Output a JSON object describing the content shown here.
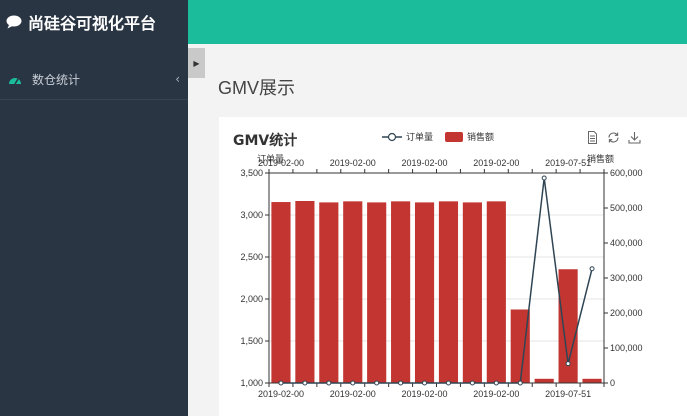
{
  "app": {
    "title": "尚硅谷可视化平台"
  },
  "sidebar": {
    "items": [
      {
        "label": "数仓统计",
        "chevron": "‹",
        "icon": "dashboard-icon"
      }
    ]
  },
  "main": {
    "collapse_glyph": "▶",
    "page_title": "GMV展示"
  },
  "colors": {
    "topbar": "#1abc9c",
    "sidebar": "#2a3543",
    "bar": "#c23531",
    "line": "#2f4554"
  },
  "chart_data": {
    "type": "bar",
    "title": "GMV统计",
    "legend": [
      "订单量",
      "销售额"
    ],
    "x": [
      "2019-02-00",
      "2019-02-00",
      "2019-02-00",
      "2019-02-00",
      "2019-02-00",
      "2019-02-00",
      "2019-02-00",
      "2019-02-00",
      "2019-02-00",
      "2019-02-00",
      "2019-02-00",
      "2019-07-51",
      "2019-07-51",
      "2019-07-51"
    ],
    "top_tick_labels": [
      "2019-02-00",
      "2019-02-00",
      "2019-02-00",
      "2019-02-00",
      "2019-07-51"
    ],
    "bottom_tick_labels": [
      "2019-02-00",
      "2019-02-00",
      "2019-02-00",
      "2019-02-00",
      "2019-07-51"
    ],
    "y_left": {
      "label": "订单量",
      "min": 1000,
      "max": 3500,
      "ticks": [
        "1,000",
        "1,500",
        "2,000",
        "2,500",
        "3,000",
        "3,500"
      ]
    },
    "y_right": {
      "label": "销售额",
      "min": 0,
      "max": 600000,
      "ticks": [
        "0",
        "100,000",
        "200,000",
        "300,000",
        "400,000",
        "500,000",
        "600,000"
      ]
    },
    "series": [
      {
        "name": "销售额",
        "type": "bar",
        "axis": "right",
        "values": [
          517000,
          520000,
          516000,
          519000,
          516000,
          519000,
          516000,
          519000,
          516000,
          519000,
          210000,
          12000,
          325000,
          12000
        ]
      },
      {
        "name": "订单量",
        "type": "line",
        "axis": "left",
        "values": [
          1000,
          1000,
          1000,
          1000,
          1000,
          1000,
          1000,
          1000,
          1000,
          1000,
          1000,
          3440,
          1230,
          2360
        ]
      }
    ]
  }
}
